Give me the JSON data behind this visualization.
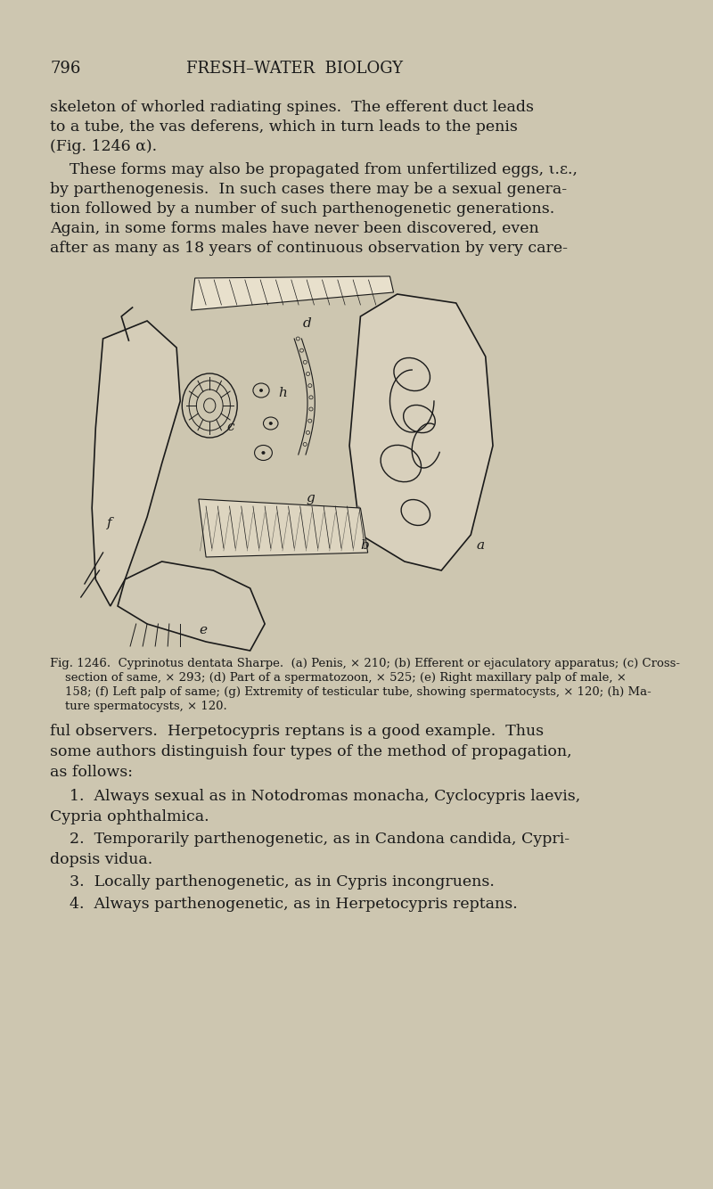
{
  "background_color": "#d4cdb8",
  "page_color": "#cdc6b0",
  "text_color": "#1a1a1a",
  "page_number": "796",
  "header": "FRESH–WATER  BIOLOGY",
  "para1_lines": [
    "skeleton of whorled radiating spines.  The efferent duct leads",
    "to a tube, the vas deferens, which in turn leads to the penis",
    "(Fig. 1246 α)."
  ],
  "para2_lines": [
    "    These forms may also be propagated from unfertilized eggs, ι.ε.,",
    "by parthenogenesis.  In such cases there may be a sexual genera-",
    "tion followed by a number of such parthenogenetic generations.",
    "Again, in some forms males have never been discovered, even",
    "after as many as 18 years of continuous observation by very care-"
  ],
  "fig_caption_lines": [
    "Fig. 1246.  Cyprinotus dentata Sharpe.  (a) Penis, × 210; (b) Efferent or ejaculatory apparatus; (c) Cross-",
    "    section of same, × 293; (d) Part of a spermatozoon, × 525; (e) Right maxillary palp of male, ×",
    "    158; (f) Left palp of same; (g) Extremity of testicular tube, showing spermatocysts, × 120; (h) Ma-",
    "    ture spermatocysts, × 120."
  ],
  "body_lines": [
    "ful observers.  Herpetocypris reptans is a good example.  Thus",
    "some authors distinguish four types of the method of propagation,",
    "as follows:"
  ],
  "item1_lines": [
    "    1.  Always sexual as in Notodromas monacha, Cyclocypris laevis,",
    "Cypria ophthalmica."
  ],
  "item2_lines": [
    "    2.  Temporarily parthenogenetic, as in Candona candida, Cypri-",
    "dopsis vidua."
  ],
  "item3": "    3.  Locally parthenogenetic, as in Cypris incongruens.",
  "item4": "    4.  Always parthenogenetic, as in Herpetocypris reptans."
}
